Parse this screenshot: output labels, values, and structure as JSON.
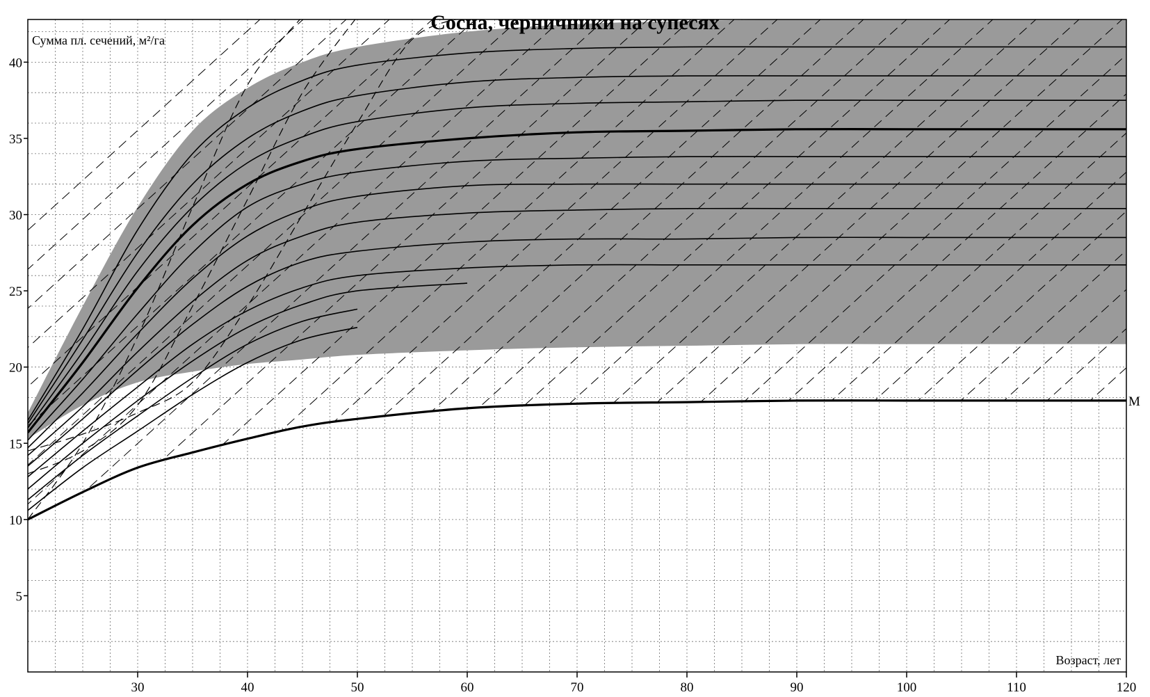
{
  "chart_data": {
    "type": "line",
    "title": "Сосна, черничники на супесях",
    "xlabel": "Возраст, лет",
    "ylabel": "Сумма пл. сечений, м²/га",
    "xlim": [
      20,
      120
    ],
    "ylim": [
      0,
      42.8
    ],
    "x_ticks": [
      30,
      40,
      50,
      60,
      70,
      80,
      90,
      100,
      110,
      120
    ],
    "y_ticks": [
      5,
      10,
      15,
      20,
      25,
      30,
      35,
      40
    ],
    "grid": true,
    "colors": {
      "band": "#9a9a9a",
      "line": "#000000",
      "background": "#ffffff"
    },
    "shaded_band": {
      "name": "",
      "x": [
        20,
        25,
        30,
        35,
        40,
        45,
        50,
        60,
        70,
        80,
        90,
        100,
        110,
        120
      ],
      "upper": [
        17.0,
        24.0,
        30.5,
        35.5,
        38.3,
        40.0,
        41.0,
        42.0,
        42.5,
        42.7,
        42.8,
        42.8,
        42.8,
        42.8
      ],
      "lower": [
        15.3,
        17.5,
        19.0,
        19.7,
        20.2,
        20.5,
        20.8,
        21.1,
        21.3,
        21.4,
        21.5,
        21.5,
        21.5,
        21.5
      ]
    },
    "series": [
      {
        "x": [
          20,
          25,
          30,
          35,
          40,
          45,
          50,
          60,
          70,
          80,
          90,
          100,
          110,
          120
        ],
        "values": [
          16.5,
          22.5,
          29.0,
          34.0,
          37.0,
          38.8,
          39.8,
          40.6,
          40.9,
          41.0,
          41.0,
          41.0,
          41.0,
          41.0
        ]
      },
      {
        "x": [
          20,
          25,
          30,
          35,
          40,
          45,
          50,
          60,
          70,
          80,
          90,
          100,
          110,
          120
        ],
        "values": [
          16.3,
          21.8,
          27.5,
          32.0,
          35.0,
          36.8,
          37.8,
          38.7,
          39.0,
          39.1,
          39.1,
          39.1,
          39.1,
          39.1
        ]
      },
      {
        "x": [
          20,
          25,
          30,
          35,
          40,
          45,
          50,
          60,
          70,
          80,
          90,
          100,
          110,
          120
        ],
        "values": [
          16.0,
          21.0,
          26.3,
          30.5,
          33.4,
          35.1,
          36.1,
          37.0,
          37.3,
          37.4,
          37.5,
          37.5,
          37.5,
          37.5
        ]
      },
      {
        "x": [
          20,
          25,
          30,
          35,
          40,
          45,
          50,
          60,
          70,
          80,
          90,
          100,
          110,
          120
        ],
        "values": [
          15.7,
          20.3,
          25.2,
          29.3,
          32.0,
          33.5,
          34.3,
          35.0,
          35.4,
          35.5,
          35.6,
          35.6,
          35.6,
          35.6
        ],
        "emphasis": true
      },
      {
        "x": [
          20,
          25,
          30,
          35,
          40,
          45,
          50,
          60,
          70,
          80,
          90,
          100,
          110,
          120
        ],
        "values": [
          15.2,
          19.2,
          23.5,
          27.5,
          30.5,
          32.0,
          32.8,
          33.5,
          33.7,
          33.8,
          33.8,
          33.8,
          33.8,
          33.8
        ]
      },
      {
        "x": [
          20,
          25,
          30,
          35,
          40,
          45,
          50,
          60,
          70,
          80,
          90,
          100,
          110,
          120
        ],
        "values": [
          14.7,
          18.3,
          22.2,
          25.8,
          28.6,
          30.3,
          31.2,
          31.9,
          32.0,
          32.0,
          32.0,
          32.0,
          32.0,
          32.0
        ]
      },
      {
        "x": [
          20,
          25,
          30,
          35,
          40,
          45,
          50,
          60,
          70,
          80,
          90,
          100,
          110,
          120
        ],
        "values": [
          14.2,
          17.4,
          21.0,
          24.3,
          27.0,
          28.6,
          29.5,
          30.1,
          30.3,
          30.4,
          30.4,
          30.4,
          30.4,
          30.4
        ]
      },
      {
        "x": [
          20,
          25,
          30,
          35,
          40,
          45,
          50,
          60,
          70,
          80,
          90,
          100,
          110,
          120
        ],
        "values": [
          13.5,
          16.6,
          19.8,
          22.8,
          25.3,
          26.9,
          27.6,
          28.2,
          28.4,
          28.4,
          28.5,
          28.5,
          28.5,
          28.5
        ]
      },
      {
        "x": [
          20,
          25,
          30,
          35,
          40,
          45,
          50,
          60,
          70,
          80,
          90,
          100,
          110,
          120
        ],
        "values": [
          12.8,
          15.8,
          18.7,
          21.5,
          23.7,
          25.2,
          26.0,
          26.5,
          26.7,
          26.7,
          26.7,
          26.7,
          26.7,
          26.7
        ]
      },
      {
        "x": [
          20,
          25,
          30,
          35,
          40,
          45,
          50,
          60
        ],
        "values": [
          12.0,
          15.0,
          17.8,
          20.4,
          22.6,
          24.1,
          25.0,
          25.5
        ]
      },
      {
        "x": [
          20,
          25,
          30,
          35,
          40,
          45,
          50
        ],
        "values": [
          11.3,
          14.2,
          16.8,
          19.3,
          21.5,
          23.0,
          23.8
        ]
      },
      {
        "x": [
          20,
          25,
          30,
          35,
          40,
          45,
          50
        ],
        "values": [
          10.6,
          13.4,
          15.8,
          18.2,
          20.3,
          21.8,
          22.6
        ]
      },
      {
        "name": "М",
        "x": [
          20,
          25,
          30,
          35,
          40,
          45,
          50,
          60,
          70,
          80,
          90,
          100,
          110,
          120
        ],
        "values": [
          10.0,
          11.8,
          13.4,
          14.4,
          15.3,
          16.1,
          16.6,
          17.3,
          17.6,
          17.7,
          17.8,
          17.8,
          17.8,
          17.8
        ],
        "emphasis": true
      }
    ],
    "dashed_series": {
      "x": [
        20,
        25,
        30,
        35,
        40,
        45,
        50,
        55,
        60
      ],
      "values_list": [
        [
          10.0,
          15.0,
          22.0,
          30.5,
          38.5,
          43.0,
          null,
          null,
          null
        ],
        [
          13.0,
          14.5,
          17.5,
          24.0,
          31.0,
          38.0,
          43.0,
          null,
          null
        ],
        [
          14.5,
          15.6,
          17.0,
          19.0,
          24.0,
          30.0,
          36.0,
          41.5,
          43.0
        ]
      ]
    }
  }
}
